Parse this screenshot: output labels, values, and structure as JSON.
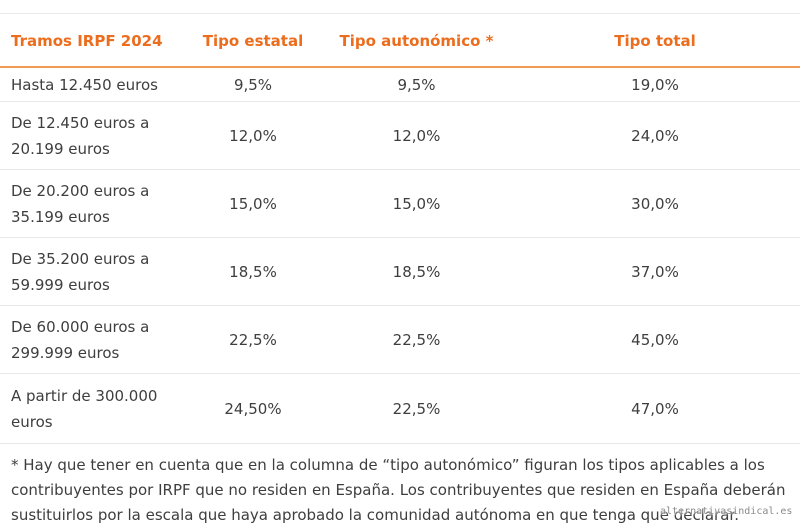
{
  "table": {
    "headers": [
      "Tramos IRPF 2024",
      "Tipo estatal",
      "Tipo autonómico *",
      "Tipo total"
    ],
    "rows": [
      {
        "tramo": "Hasta 12.450 euros",
        "estatal": "9,5%",
        "autonomico": "9,5%",
        "total": "19,0%"
      },
      {
        "tramo": "De 12.450 euros a 20.199 euros",
        "estatal": "12,0%",
        "autonomico": "12,0%",
        "total": "24,0%"
      },
      {
        "tramo": "De 20.200 euros a 35.199 euros",
        "estatal": "15,0%",
        "autonomico": "15,0%",
        "total": "30,0%"
      },
      {
        "tramo": "De 35.200 euros a 59.999 euros",
        "estatal": "18,5%",
        "autonomico": "18,5%",
        "total": "37,0%"
      },
      {
        "tramo": "De 60.000 euros a 299.999 euros",
        "estatal": "22,5%",
        "autonomico": "22,5%",
        "total": "45,0%"
      },
      {
        "tramo": "A partir de 300.000 euros",
        "estatal": "24,50%",
        "autonomico": "22,5%",
        "total": "47,0%"
      }
    ]
  },
  "footnote": "* Hay que tener en cuenta que en la columna de “tipo autonómico” figuran los tipos aplicables a los contribuyentes por IRPF que no residen en España. Los contribuyentes que residen en España deberán sustituirlos por la escala que haya aprobado la comunidad autónoma en que tenga que declarar.",
  "watermark": "alternativasindical.es",
  "colors": {
    "header_text": "#ec6d1d",
    "header_rule": "#f39a52",
    "body_text": "#3e3e3e",
    "row_divider": "#e8e8e8"
  }
}
